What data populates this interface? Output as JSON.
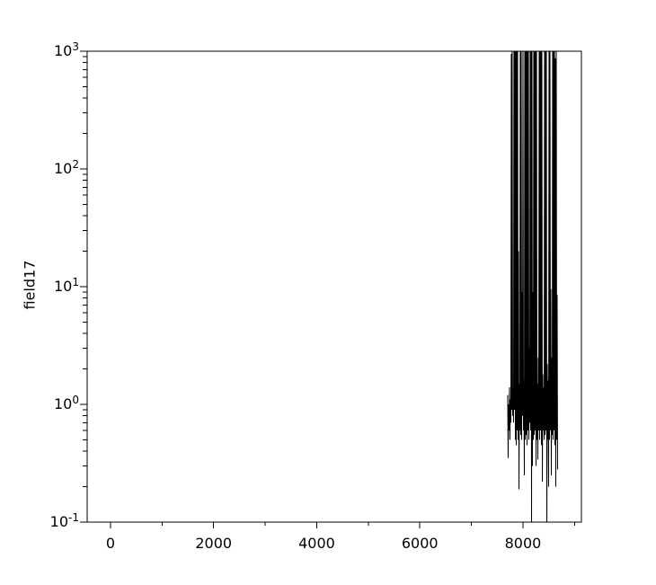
{
  "figure": {
    "background_color": "#ffffff",
    "line_color": "#000000",
    "text_color": "#000000"
  },
  "chart_data": {
    "type": "line",
    "title": "",
    "xlabel": "",
    "ylabel": "field17",
    "grid": false,
    "legend": null,
    "x_axis": {
      "scale": "linear",
      "range": [
        -453,
        9133
      ],
      "major_ticks": [
        0,
        2000,
        4000,
        6000,
        8000
      ],
      "major_tick_labels": [
        "0",
        "2000",
        "4000",
        "6000",
        "8000"
      ],
      "minor_ticks": [
        1000,
        3000,
        5000,
        7000,
        9000
      ]
    },
    "y_axis": {
      "scale": "log",
      "range": [
        0.1,
        1000
      ],
      "major_ticks": [
        1000,
        100,
        10,
        1,
        0.1
      ],
      "major_tick_labels": [
        {
          "base": "10",
          "exp": "3"
        },
        {
          "base": "10",
          "exp": "2"
        },
        {
          "base": "10",
          "exp": "1"
        },
        {
          "base": "10",
          "exp": "0"
        },
        {
          "base": "10",
          "exp": "-1"
        }
      ],
      "minor_ticks": [
        0.2,
        0.3,
        0.4,
        0.5,
        0.6,
        0.7,
        0.8,
        0.9,
        2,
        3,
        4,
        5,
        6,
        7,
        8,
        9,
        20,
        30,
        40,
        50,
        60,
        70,
        80,
        90,
        200,
        300,
        400,
        500,
        600,
        700,
        800,
        900
      ]
    },
    "series": [
      {
        "name": "field17",
        "color": "#000000",
        "style": "dense spiky signal; values are clipped at the y-range [0.1, 1000]; each sample is [x, local_max, local_min]",
        "columns": [
          [
            7703,
            1.2,
            0.35
          ],
          [
            7721,
            1.0,
            0.6
          ],
          [
            7738,
            1.4,
            0.5
          ],
          [
            7756,
            1.1,
            0.7
          ],
          [
            7773,
            950,
            0.9
          ],
          [
            7790,
            1200,
            0.8
          ],
          [
            7808,
            1.4,
            0.7
          ],
          [
            7825,
            1200,
            0.9
          ],
          [
            7843,
            1200,
            0.5
          ],
          [
            7860,
            1200,
            0.45
          ],
          [
            7878,
            1200,
            0.6
          ],
          [
            7895,
            1200,
            0.5
          ],
          [
            7913,
            20,
            0.19
          ],
          [
            7930,
            1.5,
            0.6
          ],
          [
            7947,
            1200,
            0.55
          ],
          [
            7965,
            1200,
            0.5
          ],
          [
            7982,
            9,
            0.8
          ],
          [
            8000,
            1200,
            0.6
          ],
          [
            8017,
            1.6,
            0.25
          ],
          [
            8035,
            1200,
            0.5
          ],
          [
            8052,
            1200,
            0.55
          ],
          [
            8070,
            1200,
            0.45
          ],
          [
            8087,
            1200,
            0.6
          ],
          [
            8105,
            1200,
            0.5
          ],
          [
            8122,
            3,
            0.7
          ],
          [
            8139,
            1200,
            0.6
          ],
          [
            8157,
            1200,
            0.08
          ],
          [
            8174,
            1200,
            0.3
          ],
          [
            8192,
            9,
            0.5
          ],
          [
            8209,
            1200,
            0.55
          ],
          [
            8227,
            1200,
            0.6
          ],
          [
            8244,
            1200,
            0.3
          ],
          [
            8262,
            1200,
            0.5
          ],
          [
            8279,
            1.5,
            0.34
          ],
          [
            8296,
            2.5,
            0.6
          ],
          [
            8314,
            1200,
            0.5
          ],
          [
            8331,
            1200,
            0.6
          ],
          [
            8349,
            1200,
            0.45
          ],
          [
            8366,
            1200,
            0.22
          ],
          [
            8384,
            1.8,
            0.6
          ],
          [
            8401,
            1.4,
            0.5
          ],
          [
            8419,
            1200,
            0.55
          ],
          [
            8436,
            1200,
            0.6
          ],
          [
            8453,
            1200,
            0.07
          ],
          [
            8471,
            2.2,
            0.5
          ],
          [
            8488,
            1.6,
            0.2
          ],
          [
            8505,
            1200,
            0.5
          ],
          [
            8523,
            1200,
            0.6
          ],
          [
            8540,
            9.5,
            0.25
          ],
          [
            8558,
            2.5,
            0.55
          ],
          [
            8575,
            1200,
            0.5
          ],
          [
            8592,
            1200,
            0.6
          ],
          [
            8610,
            1200,
            0.45
          ],
          [
            8627,
            870,
            0.2
          ],
          [
            8645,
            1200,
            0.5
          ],
          [
            8662,
            8.5,
            0.28
          ]
        ]
      }
    ]
  }
}
